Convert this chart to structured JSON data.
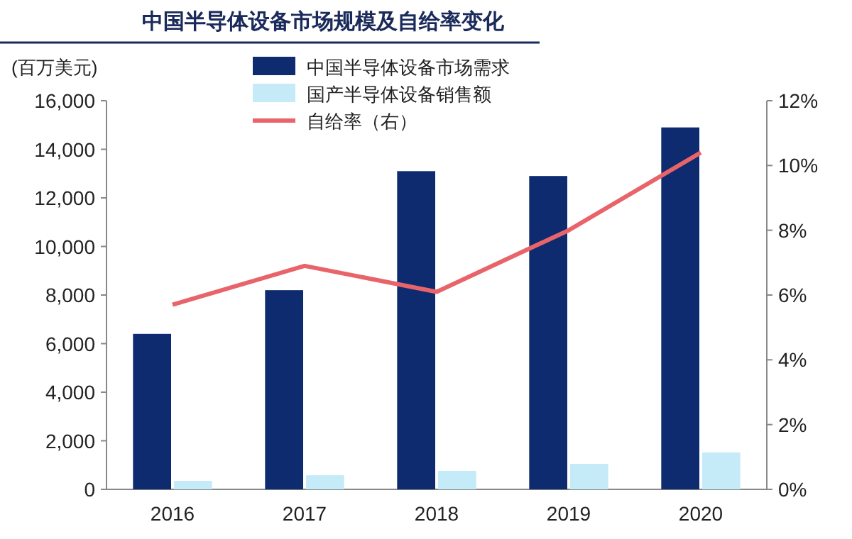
{
  "chart_data": {
    "type": "bar",
    "title": "中国半导体设备市场规模及自给率变化",
    "ylabel": "(百万美元)",
    "categories": [
      "2016",
      "2017",
      "2018",
      "2019",
      "2020"
    ],
    "series": [
      {
        "name": "中国半导体设备市场需求",
        "color": "#0d2b6e",
        "values": [
          6400,
          8200,
          13100,
          12900,
          14900
        ]
      },
      {
        "name": "国产半导体设备销售额",
        "color": "#c5eaf8",
        "values": [
          350,
          580,
          760,
          1050,
          1520
        ]
      },
      {
        "name": "自给率（右）",
        "type": "line",
        "axis": "y2",
        "color": "#e8646a",
        "values": [
          5.7,
          6.9,
          6.1,
          8.0,
          10.4
        ]
      }
    ],
    "ylim": [
      0,
      16000
    ],
    "yticks": [
      0,
      {
        "value": 2000,
        "label": "2,000"
      },
      {
        "value": 4000,
        "label": "4,000"
      },
      {
        "value": 6000,
        "label": "6,000"
      },
      {
        "value": 8000,
        "label": "8,000"
      },
      {
        "value": 10000,
        "label": "10,000"
      },
      {
        "value": 12000,
        "label": "12,000"
      },
      {
        "value": 14000,
        "label": "14,000"
      },
      {
        "value": 16000,
        "label": "16,000"
      }
    ],
    "y2lim": [
      0,
      12
    ],
    "y2ticks": [
      {
        "value": 0,
        "label": "0%"
      },
      {
        "value": 2,
        "label": "2%"
      },
      {
        "value": 4,
        "label": "4%"
      },
      {
        "value": 6,
        "label": "6%"
      },
      {
        "value": 8,
        "label": "8%"
      },
      {
        "value": 10,
        "label": "10%"
      },
      {
        "value": 12,
        "label": "12%"
      }
    ],
    "grid": false,
    "legend": "top",
    "marker": "none",
    "line_style": "solid"
  }
}
